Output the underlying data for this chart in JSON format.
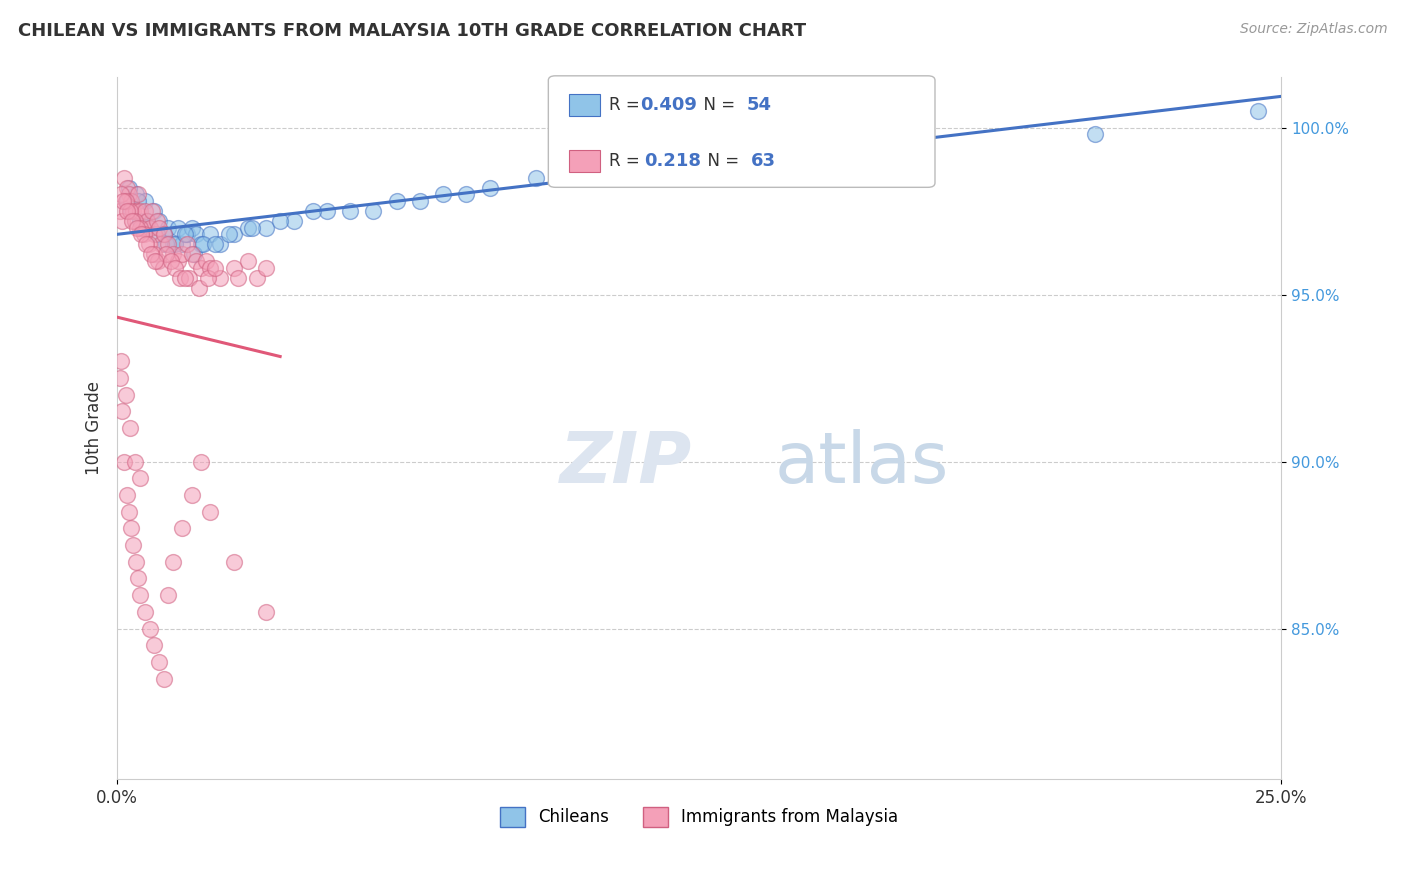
{
  "title": "CHILEAN VS IMMIGRANTS FROM MALAYSIA 10TH GRADE CORRELATION CHART",
  "source": "Source: ZipAtlas.com",
  "xlim": [
    0.0,
    25.0
  ],
  "ylim": [
    80.5,
    101.5
  ],
  "yticks": [
    85.0,
    90.0,
    95.0,
    100.0
  ],
  "ytick_labels": [
    "85.0%",
    "90.0%",
    "95.0%",
    "100.0%"
  ],
  "r_chilean": 0.409,
  "n_chilean": 54,
  "r_immigrant": 0.218,
  "n_immigrant": 63,
  "color_chilean": "#90C4E8",
  "color_immigrant": "#F4A0B8",
  "color_line_chilean": "#4472C4",
  "color_line_immigrant": "#E05878",
  "ylabel_label": "10th Grade",
  "legend_label_chilean": "Chileans",
  "legend_label_immigrant": "Immigrants from Malaysia",
  "chilean_x": [
    0.2,
    0.3,
    0.4,
    0.5,
    0.6,
    0.7,
    0.8,
    0.9,
    1.0,
    1.1,
    1.2,
    1.3,
    1.4,
    1.5,
    1.6,
    1.7,
    1.8,
    2.0,
    2.2,
    2.5,
    2.8,
    3.2,
    3.8,
    4.5,
    5.5,
    6.5,
    7.5,
    9.0,
    11.0,
    13.0,
    0.25,
    0.45,
    0.65,
    0.85,
    1.05,
    1.25,
    1.45,
    1.65,
    1.85,
    2.1,
    2.4,
    2.9,
    3.5,
    4.2,
    5.0,
    6.0,
    7.0,
    8.0,
    10.0,
    12.0,
    14.0,
    16.0,
    21.0,
    24.5
  ],
  "chilean_y": [
    97.8,
    97.5,
    98.0,
    97.2,
    97.8,
    97.0,
    97.5,
    97.2,
    96.8,
    97.0,
    96.5,
    97.0,
    96.5,
    96.8,
    97.0,
    96.8,
    96.5,
    96.8,
    96.5,
    96.8,
    97.0,
    97.0,
    97.2,
    97.5,
    97.5,
    97.8,
    98.0,
    98.5,
    99.0,
    99.5,
    98.2,
    97.8,
    97.2,
    96.8,
    96.5,
    96.5,
    96.8,
    96.2,
    96.5,
    96.5,
    96.8,
    97.0,
    97.2,
    97.5,
    97.5,
    97.8,
    98.0,
    98.2,
    99.0,
    99.2,
    99.5,
    99.8,
    99.8,
    100.5
  ],
  "immigrant_x": [
    0.05,
    0.1,
    0.15,
    0.2,
    0.25,
    0.3,
    0.35,
    0.4,
    0.45,
    0.5,
    0.55,
    0.6,
    0.65,
    0.7,
    0.75,
    0.8,
    0.85,
    0.9,
    0.95,
    1.0,
    1.1,
    1.2,
    1.3,
    1.4,
    1.5,
    1.6,
    1.7,
    1.8,
    1.9,
    2.0,
    2.2,
    2.5,
    2.8,
    3.0,
    0.08,
    0.18,
    0.28,
    0.38,
    0.48,
    0.58,
    0.68,
    0.78,
    0.88,
    0.98,
    1.05,
    1.15,
    1.25,
    1.35,
    1.55,
    1.75,
    1.95,
    2.1,
    2.6,
    3.2,
    0.12,
    0.22,
    0.32,
    0.42,
    0.52,
    0.62,
    0.72,
    0.82,
    1.45
  ],
  "immigrant_y": [
    97.5,
    97.2,
    98.5,
    98.2,
    98.0,
    97.8,
    97.5,
    97.5,
    98.0,
    97.5,
    97.0,
    97.5,
    97.2,
    97.0,
    97.5,
    96.8,
    97.2,
    97.0,
    96.5,
    96.8,
    96.5,
    96.2,
    96.0,
    96.2,
    96.5,
    96.2,
    96.0,
    95.8,
    96.0,
    95.8,
    95.5,
    95.8,
    96.0,
    95.5,
    98.0,
    97.8,
    97.5,
    97.2,
    97.0,
    96.8,
    96.5,
    96.2,
    96.0,
    95.8,
    96.2,
    96.0,
    95.8,
    95.5,
    95.5,
    95.2,
    95.5,
    95.8,
    95.5,
    95.8,
    97.8,
    97.5,
    97.2,
    97.0,
    96.8,
    96.5,
    96.2,
    96.0,
    95.5
  ],
  "immigrant_x_low": [
    0.05,
    0.1,
    0.15,
    0.2,
    0.25,
    0.3,
    0.35,
    0.4,
    0.45,
    0.5,
    0.6,
    0.7,
    0.8,
    0.9,
    1.0,
    1.1,
    1.2,
    1.4,
    1.6,
    1.8,
    2.0,
    2.5,
    3.2,
    0.08,
    0.18,
    0.28,
    0.38,
    0.48
  ],
  "immigrant_y_low": [
    92.5,
    91.5,
    90.0,
    89.0,
    88.5,
    88.0,
    87.5,
    87.0,
    86.5,
    86.0,
    85.5,
    85.0,
    84.5,
    84.0,
    83.5,
    86.0,
    87.0,
    88.0,
    89.0,
    90.0,
    88.5,
    87.0,
    85.5,
    93.0,
    92.0,
    91.0,
    90.0,
    89.5
  ],
  "watermark_zip": "ZIP",
  "watermark_atlas": "atlas"
}
